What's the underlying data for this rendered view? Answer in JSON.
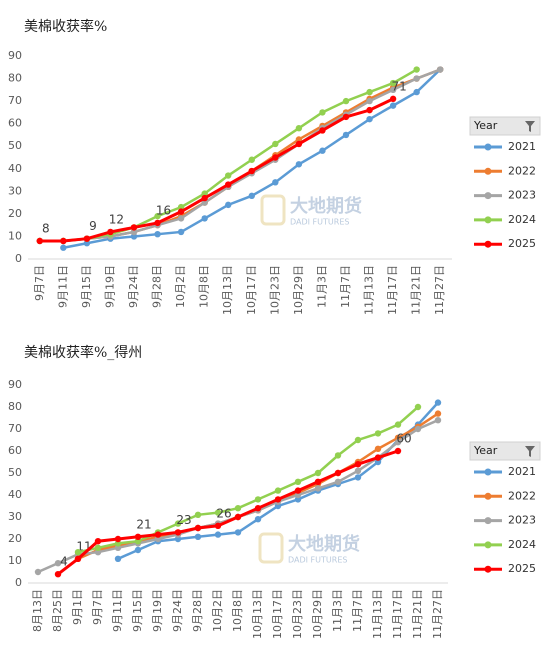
{
  "chart_data": [
    {
      "type": "line",
      "title": "美棉收获率%",
      "watermark": "大地期货",
      "watermark_sub": "DADI FUTURES",
      "legend_title": "Year",
      "legend": "right",
      "grid": false,
      "categories": [
        "9月7日",
        "9月11日",
        "9月15日",
        "9月19日",
        "9月24日",
        "9月28日",
        "10月2日",
        "10月8日",
        "10月13日",
        "10月17日",
        "10月23日",
        "10月29日",
        "11月3日",
        "11月7日",
        "11月13日",
        "11月17日",
        "11月21日",
        "11月27日"
      ],
      "ylim": [
        0,
        90
      ],
      "yticks": [
        0,
        10,
        20,
        30,
        40,
        50,
        60,
        70,
        80,
        90
      ],
      "series": [
        {
          "name": "2021",
          "color": "#5b9bd5",
          "values": [
            null,
            5,
            7,
            9,
            10,
            11,
            12,
            18,
            24,
            28,
            34,
            42,
            48,
            55,
            62,
            68,
            74,
            84
          ]
        },
        {
          "name": "2022",
          "color": "#ed7d31",
          "values": [
            8,
            8,
            9,
            10,
            12,
            15,
            19,
            25,
            32,
            39,
            46,
            53,
            59,
            65,
            71,
            76,
            80,
            84
          ]
        },
        {
          "name": "2023",
          "color": "#a5a5a5",
          "values": [
            8,
            8,
            9,
            10,
            12,
            15,
            18,
            25,
            32,
            38,
            44,
            51,
            58,
            64,
            70,
            75,
            80,
            84
          ]
        },
        {
          "name": "2024",
          "color": "#92d050",
          "values": [
            8,
            8,
            9,
            11,
            14,
            19,
            23,
            29,
            37,
            44,
            51,
            58,
            65,
            70,
            74,
            78,
            84,
            null
          ]
        },
        {
          "name": "2025",
          "color": "#ff0000",
          "values": [
            8,
            8,
            9,
            12,
            14,
            16,
            21,
            27,
            33,
            39,
            45,
            51,
            57,
            63,
            66,
            71,
            null,
            null
          ],
          "value_labels": [
            "8",
            null,
            "9",
            "12",
            null,
            "16",
            null,
            null,
            null,
            null,
            null,
            null,
            null,
            null,
            null,
            "71",
            null,
            null
          ]
        }
      ]
    },
    {
      "type": "line",
      "title": "美棉收获率%_得州",
      "watermark": "大地期货",
      "watermark_sub": "DADI FUTURES",
      "legend_title": "Year",
      "legend": "right",
      "grid": false,
      "categories": [
        "8月13日",
        "8月25日",
        "9月1日",
        "9月7日",
        "9月11日",
        "9月15日",
        "9月19日",
        "9月24日",
        "9月28日",
        "10月2日",
        "10月8日",
        "10月13日",
        "10月17日",
        "10月23日",
        "10月29日",
        "11月3日",
        "11月7日",
        "11月13日",
        "11月17日",
        "11月21日",
        "11月27日"
      ],
      "ylim": [
        0,
        90
      ],
      "yticks": [
        0,
        10,
        20,
        30,
        40,
        50,
        60,
        70,
        80,
        90
      ],
      "series": [
        {
          "name": "2021",
          "color": "#5b9bd5",
          "values": [
            null,
            null,
            null,
            null,
            11,
            15,
            19,
            20,
            21,
            22,
            23,
            29,
            35,
            38,
            42,
            45,
            48,
            55,
            65,
            72,
            82
          ]
        },
        {
          "name": "2022",
          "color": "#ed7d31",
          "values": [
            null,
            null,
            11,
            15,
            17,
            19,
            21,
            23,
            25,
            27,
            30,
            33,
            37,
            41,
            45,
            50,
            55,
            61,
            66,
            71,
            77
          ],
          "value_labels": [
            null,
            null,
            "11",
            null,
            null,
            null,
            null,
            null,
            null,
            null,
            null,
            null,
            null,
            null,
            null,
            null,
            null,
            null,
            null,
            null,
            null
          ]
        },
        {
          "name": "2023",
          "color": "#a5a5a5",
          "values": [
            5,
            9,
            13,
            14,
            16,
            18,
            20,
            22,
            25,
            27,
            30,
            33,
            37,
            40,
            43,
            46,
            51,
            57,
            64,
            70,
            74
          ]
        },
        {
          "name": "2024",
          "color": "#92d050",
          "values": [
            null,
            null,
            14,
            16,
            18,
            19,
            23,
            27,
            31,
            32,
            34,
            38,
            42,
            46,
            50,
            58,
            65,
            68,
            72,
            80,
            null
          ]
        },
        {
          "name": "2025",
          "color": "#ff0000",
          "values": [
            null,
            4,
            11,
            19,
            20,
            21,
            22,
            23,
            25,
            26,
            30,
            34,
            38,
            42,
            46,
            50,
            54,
            57,
            60,
            null,
            null
          ],
          "value_labels": [
            null,
            "4",
            null,
            null,
            null,
            "21",
            null,
            "23",
            null,
            "26",
            null,
            null,
            null,
            null,
            null,
            null,
            null,
            null,
            "60",
            null,
            null
          ]
        }
      ]
    }
  ]
}
